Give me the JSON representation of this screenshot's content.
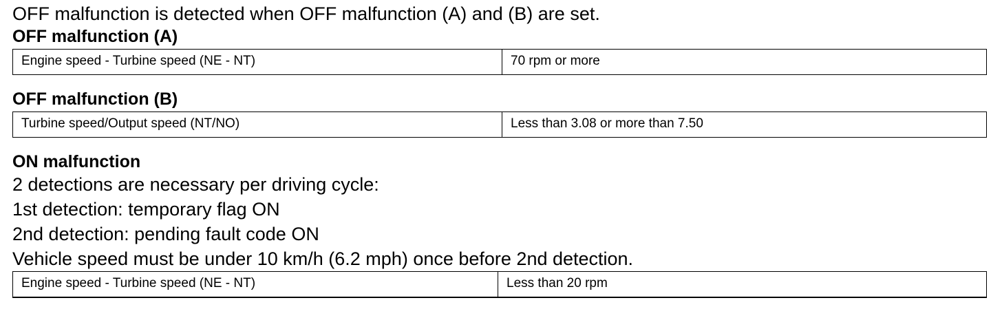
{
  "intro": "OFF malfunction is detected when OFF malfunction (A) and (B) are set.",
  "off_a": {
    "heading": "OFF malfunction (A)",
    "rows": [
      {
        "item": "Engine speed - Turbine speed (NE - NT)",
        "value": "70 rpm or more"
      }
    ]
  },
  "off_b": {
    "heading": "OFF malfunction (B)",
    "rows": [
      {
        "item": "Turbine speed/Output speed (NT/NO)",
        "value": "Less than 3.08 or more than 7.50"
      }
    ]
  },
  "on": {
    "heading": "ON malfunction",
    "lines": [
      "2 detections are necessary per driving cycle:",
      "1st detection: temporary flag ON",
      "2nd detection: pending fault code ON",
      "Vehicle speed must be under 10 km/h (6.2 mph) once before 2nd detection."
    ],
    "rows": [
      {
        "item": "Engine speed - Turbine speed (NE - NT)",
        "value": "Less than 20 rpm"
      }
    ]
  }
}
